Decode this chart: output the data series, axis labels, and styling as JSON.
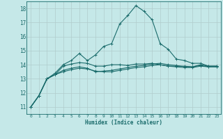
{
  "title": "",
  "xlabel": "Humidex (Indice chaleur)",
  "background_color": "#c5e8e8",
  "grid_color": "#b0cccc",
  "line_color": "#1a6b6b",
  "xlim": [
    -0.5,
    23.5
  ],
  "ylim": [
    10.5,
    18.5
  ],
  "yticks": [
    11,
    12,
    13,
    14,
    15,
    16,
    17,
    18
  ],
  "xticks": [
    0,
    1,
    2,
    3,
    4,
    5,
    6,
    7,
    8,
    9,
    10,
    11,
    12,
    13,
    14,
    15,
    16,
    17,
    18,
    19,
    20,
    21,
    22,
    23
  ],
  "series": [
    [
      11.0,
      11.8,
      13.0,
      13.3,
      13.9,
      14.05,
      14.15,
      14.1,
      13.9,
      13.9,
      14.0,
      14.0,
      13.95,
      14.05,
      14.05,
      14.1,
      14.0,
      13.9,
      13.9,
      13.9,
      13.85,
      14.0,
      13.9,
      13.9
    ],
    [
      11.0,
      11.8,
      13.0,
      13.4,
      14.0,
      14.3,
      14.8,
      14.3,
      14.7,
      15.3,
      15.5,
      16.9,
      17.5,
      18.2,
      17.8,
      17.2,
      15.5,
      15.1,
      14.4,
      14.3,
      14.1,
      14.1,
      13.9,
      13.9
    ],
    [
      11.0,
      11.8,
      13.0,
      13.3,
      13.6,
      13.75,
      13.85,
      13.75,
      13.5,
      13.55,
      13.6,
      13.7,
      13.8,
      13.9,
      13.95,
      14.05,
      14.1,
      14.0,
      13.95,
      13.85,
      13.85,
      13.95,
      13.85,
      13.85
    ],
    [
      11.0,
      11.8,
      13.0,
      13.3,
      13.5,
      13.65,
      13.75,
      13.7,
      13.55,
      13.5,
      13.5,
      13.6,
      13.7,
      13.8,
      13.85,
      13.95,
      14.0,
      13.9,
      13.85,
      13.8,
      13.8,
      13.9,
      13.85,
      13.85
    ]
  ]
}
